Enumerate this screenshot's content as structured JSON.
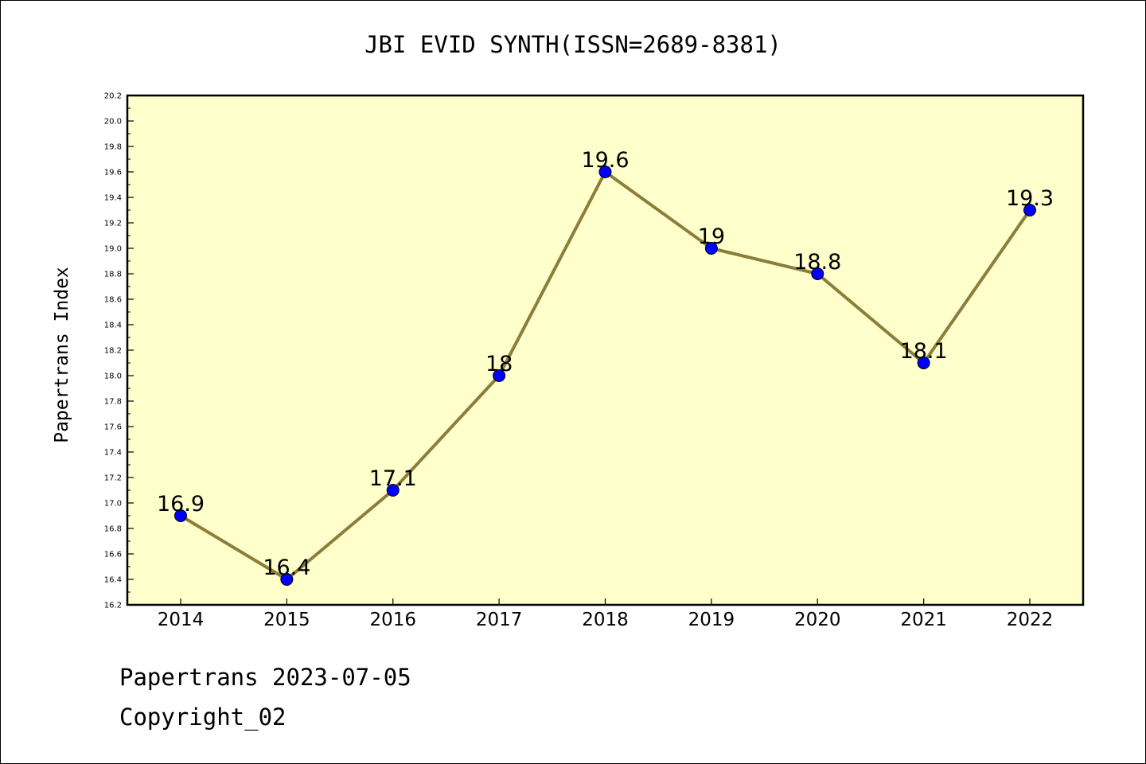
{
  "chart_data": {
    "type": "line",
    "title": "JBI EVID SYNTH(ISSN=2689-8381)",
    "ylabel": "Papertrans Index",
    "xlabel": "",
    "categories": [
      "2014",
      "2015",
      "2016",
      "2017",
      "2018",
      "2019",
      "2020",
      "2021",
      "2022"
    ],
    "series": [
      {
        "values": [
          16.9,
          16.4,
          17.1,
          18,
          19.6,
          19,
          18.8,
          18.1,
          19.3
        ],
        "labels": [
          "16.9",
          "16.4",
          "17.1",
          "18",
          "19.6",
          "19",
          "18.8",
          "18.1",
          "19.3"
        ]
      }
    ],
    "ylim": [
      16.2,
      20.2
    ],
    "yticks": [
      "16.2",
      "16.4",
      "16.6",
      "16.8",
      "17.0",
      "17.2",
      "17.4",
      "17.6",
      "17.8",
      "18.0",
      "18.2",
      "18.4",
      "18.6",
      "18.8",
      "19.0",
      "19.2",
      "19.4",
      "19.6",
      "19.8",
      "20.0",
      "20.2"
    ],
    "grid": false,
    "legend": "none",
    "colors": {
      "plot_background": "#ffffcc",
      "line": "#8b7d3a",
      "marker": "#0000ff"
    }
  },
  "footer": {
    "line1": "Papertrans 2023-07-05",
    "line2": "Copyright_02"
  }
}
